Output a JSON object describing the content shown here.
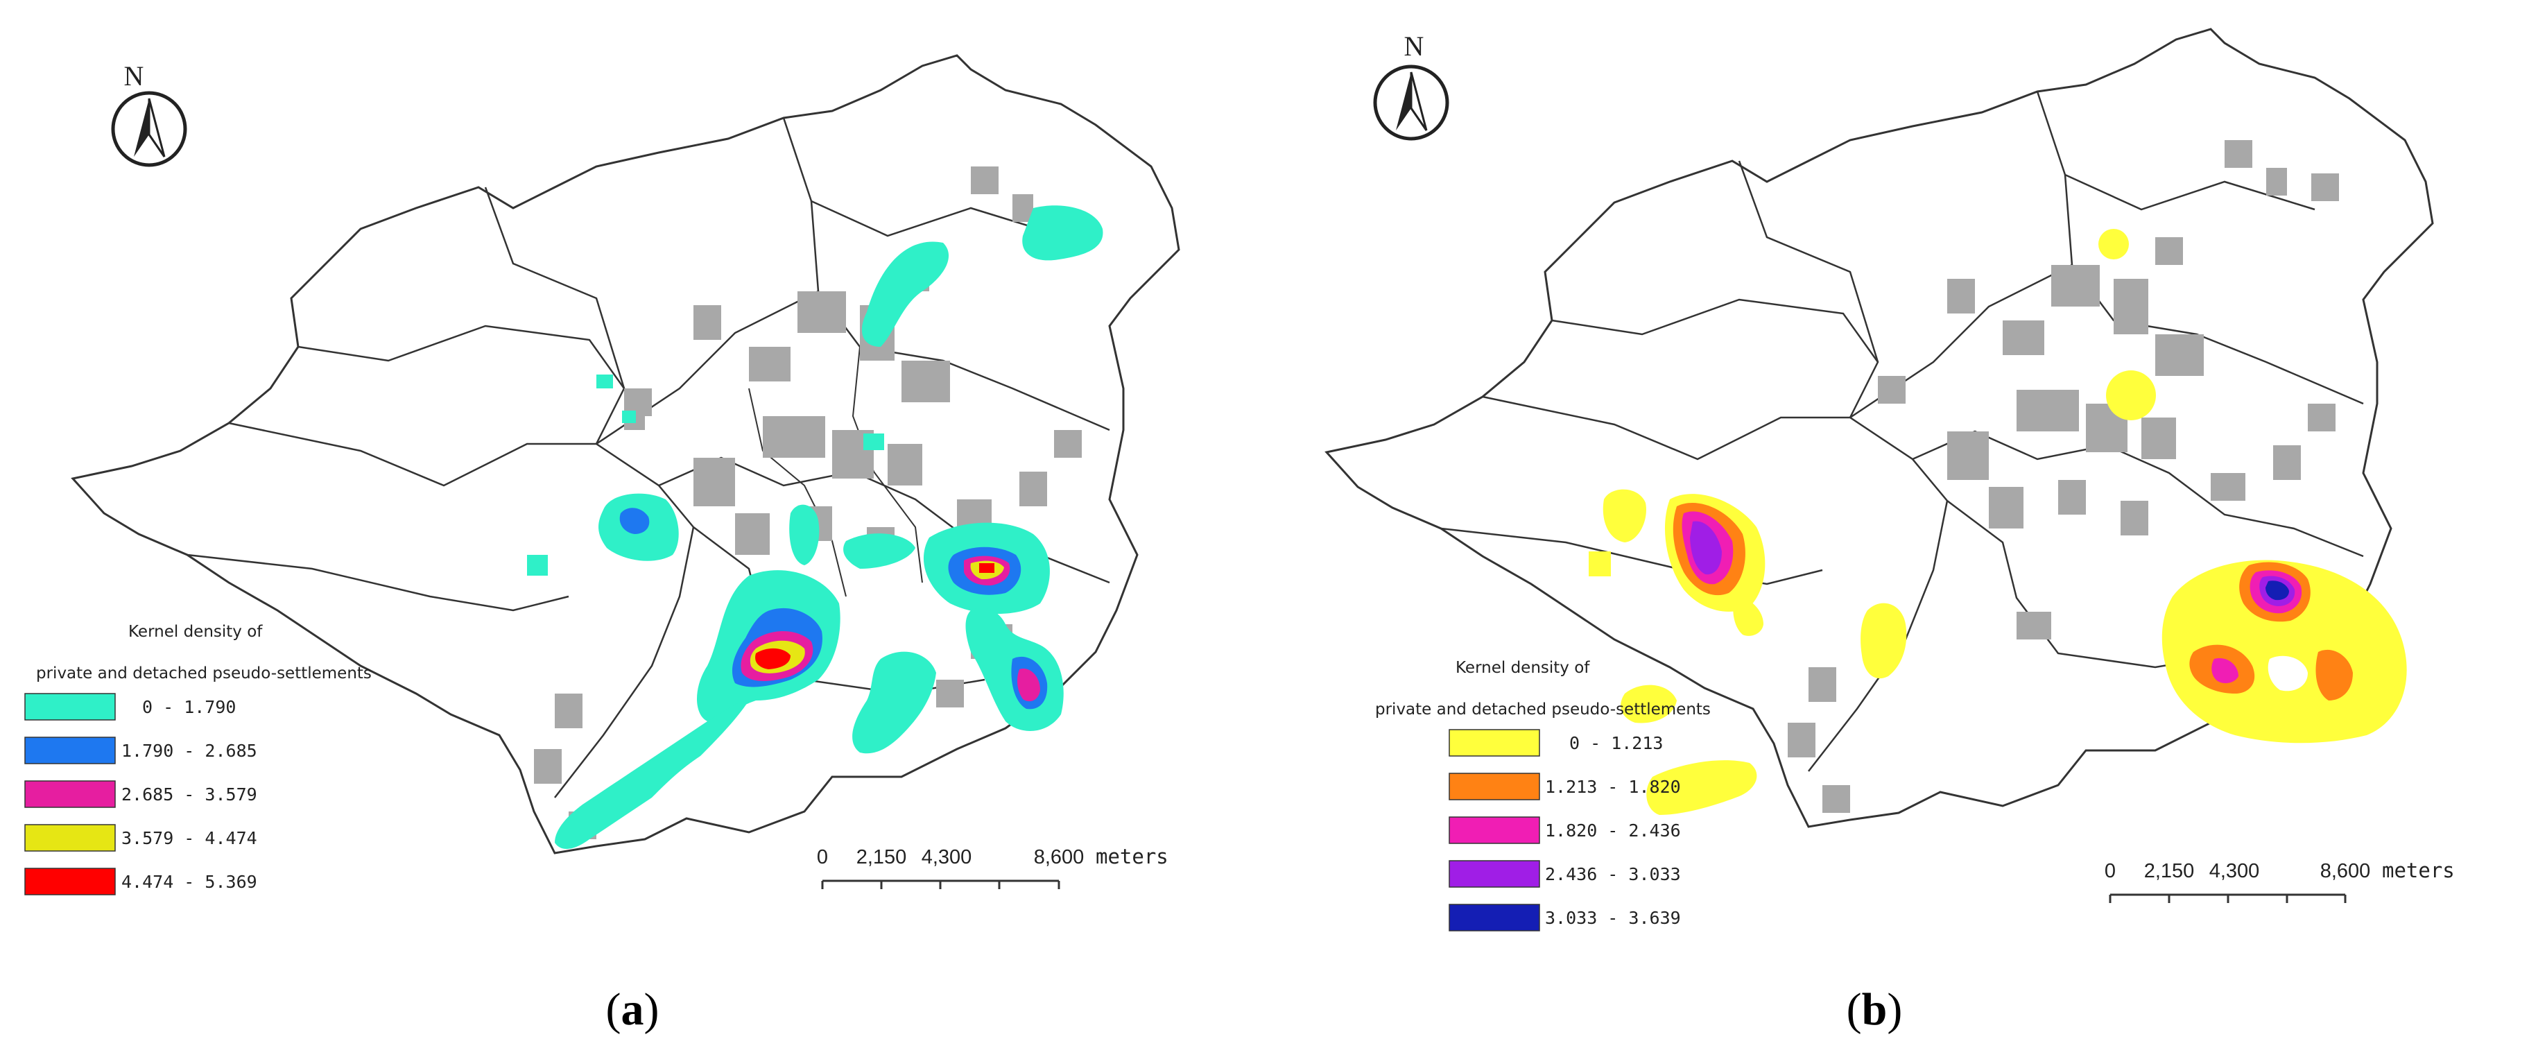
{
  "north_label": "N",
  "panels": [
    {
      "caption": "a",
      "legend_title_line1": "Kernel density of",
      "legend_title_line2": "private and detached pseudo-settlements",
      "classes": [
        {
          "label": "0 - 1.790",
          "color": "#2ff0c8"
        },
        {
          "label": "1.790 - 2.685",
          "color": "#1e78f0"
        },
        {
          "label": "2.685 - 3.579",
          "color": "#e61ea0"
        },
        {
          "label": "3.579 - 4.474",
          "color": "#e6e614"
        },
        {
          "label": "4.474 - 5.369",
          "color": "#ff0000"
        }
      ],
      "scale": {
        "ticks": [
          "0",
          "2,150",
          "4,300",
          "8,600"
        ],
        "unit": "meters"
      }
    },
    {
      "caption": "b",
      "legend_title_line1": "Kernel density of",
      "legend_title_line2": "private and detached pseudo-settlements",
      "classes": [
        {
          "label": "0 - 1.213",
          "color": "#ffff3c"
        },
        {
          "label": "1.213 - 1.820",
          "color": "#ff8214"
        },
        {
          "label": "1.820 - 2.436",
          "color": "#f01eb4"
        },
        {
          "label": "2.436 - 3.033",
          "color": "#a01ee6"
        },
        {
          "label": "3.033 - 3.639",
          "color": "#141eb4"
        }
      ],
      "scale": {
        "ticks": [
          "0",
          "2,150",
          "4,300",
          "8,600"
        ],
        "unit": "meters"
      }
    }
  ]
}
